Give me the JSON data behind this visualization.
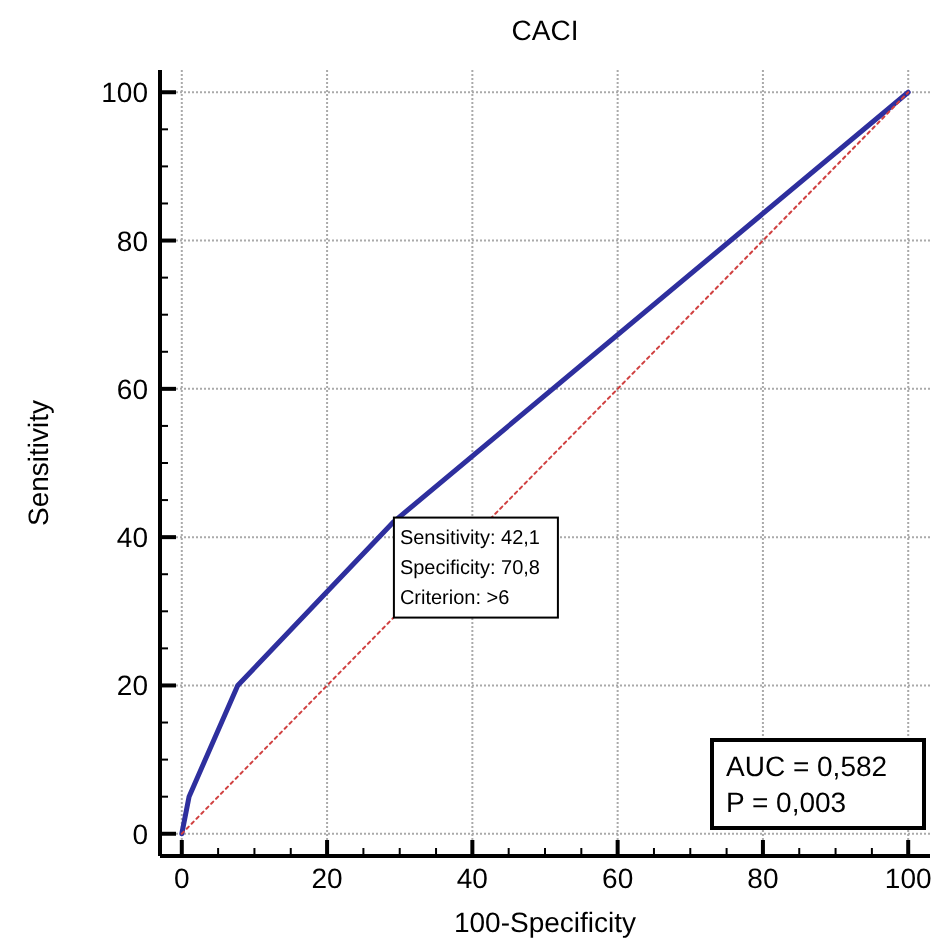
{
  "chart_data": {
    "type": "line",
    "title": "CACI",
    "xlabel": "100-Specificity",
    "ylabel": "Sensitivity",
    "xlim": [
      -3,
      103
    ],
    "ylim": [
      -3,
      103
    ],
    "xticks": [
      0,
      {
        "value": 5,
        "label": null
      },
      {
        "value": 10,
        "label": null
      },
      {
        "value": 15,
        "label": null
      },
      20,
      {
        "value": 25,
        "label": null
      },
      {
        "value": 30,
        "label": null
      },
      {
        "value": 35,
        "label": null
      },
      40,
      {
        "value": 45,
        "label": null
      },
      {
        "value": 50,
        "label": null
      },
      {
        "value": 55,
        "label": null
      },
      60,
      {
        "value": 65,
        "label": null
      },
      {
        "value": 70,
        "label": null
      },
      {
        "value": 75,
        "label": null
      },
      80,
      {
        "value": 85,
        "label": null
      },
      {
        "value": 90,
        "label": null
      },
      {
        "value": 95,
        "label": null
      },
      100
    ],
    "yticks": [
      0,
      {
        "value": 5,
        "label": null
      },
      {
        "value": 10,
        "label": null
      },
      {
        "value": 15,
        "label": null
      },
      20,
      {
        "value": 25,
        "label": null
      },
      {
        "value": 30,
        "label": null
      },
      {
        "value": 35,
        "label": null
      },
      40,
      {
        "value": 45,
        "label": null
      },
      {
        "value": 50,
        "label": null
      },
      {
        "value": 55,
        "label": null
      },
      60,
      {
        "value": 65,
        "label": null
      },
      {
        "value": 70,
        "label": null
      },
      {
        "value": 75,
        "label": null
      },
      80,
      {
        "value": 85,
        "label": null
      },
      {
        "value": 90,
        "label": null
      },
      {
        "value": 95,
        "label": null
      },
      100
    ],
    "grid": true,
    "series": [
      {
        "color": "#2e2f9e",
        "x": [
          0,
          1,
          7.7,
          29.2,
          100
        ],
        "values": [
          0,
          5,
          20,
          42.1,
          100
        ],
        "line_style": "solid"
      },
      {
        "color": "#d04040",
        "x": [
          0,
          100
        ],
        "values": [
          0,
          100
        ],
        "line_style": "dotted"
      }
    ],
    "annotations": [
      {
        "text": "Sensitivity: 42,1\nSpecificity: 70,8\nCriterion: >6",
        "x": 29.2,
        "y": 42.1
      },
      "AUC = 0,582\nP = 0,003"
    ]
  }
}
